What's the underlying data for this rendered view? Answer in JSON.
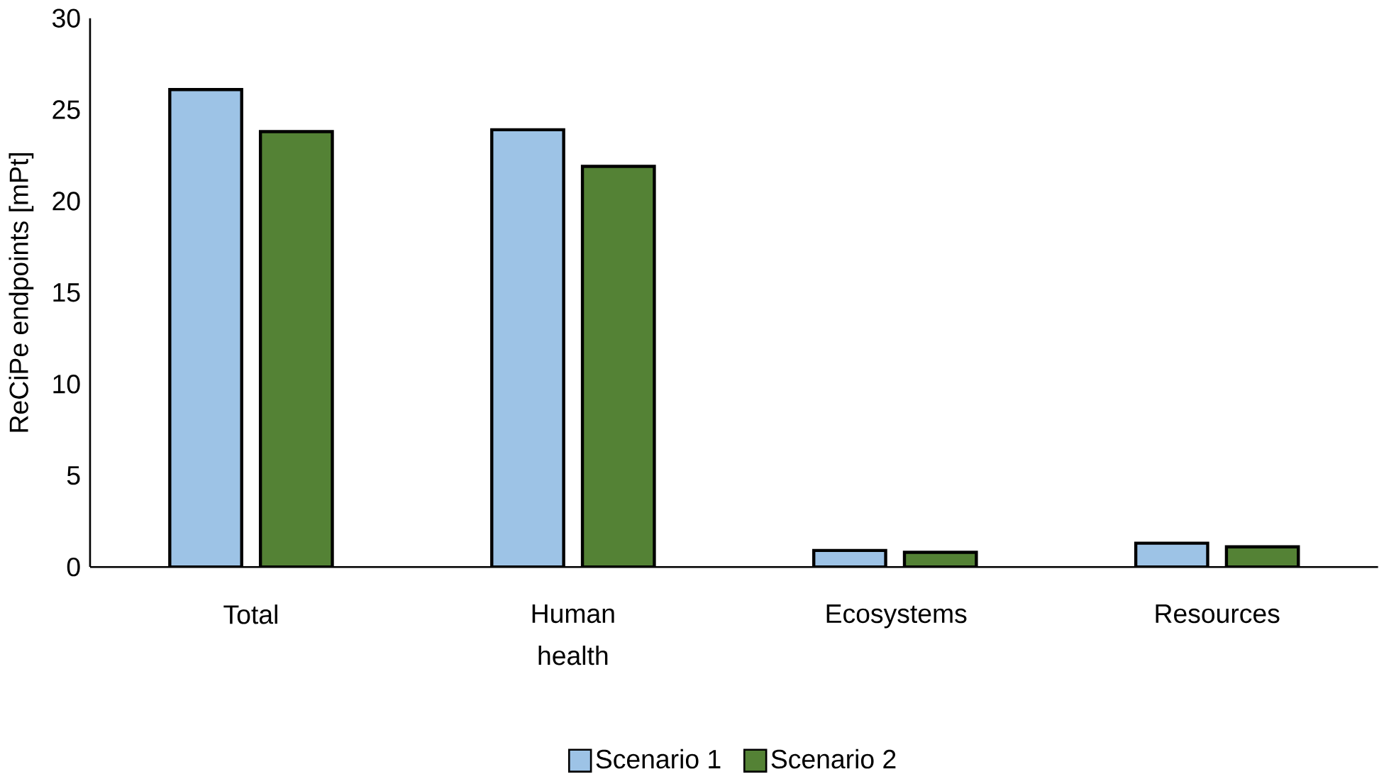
{
  "chart_data": {
    "type": "bar",
    "ylabel": "ReCiPe endpoints [mPt]",
    "categories": [
      "Total",
      "Human health",
      "Ecosystems",
      "Resources"
    ],
    "series": [
      {
        "name": "Scenario 1",
        "color": "#9dc3e6",
        "values": [
          26.1,
          23.9,
          0.9,
          1.3
        ]
      },
      {
        "name": "Scenario 2",
        "color": "#548235",
        "values": [
          23.8,
          21.9,
          0.8,
          1.1
        ]
      }
    ],
    "ylim": [
      0,
      30
    ],
    "yticks": [
      0,
      5,
      10,
      15,
      20,
      25,
      30
    ],
    "grid": false,
    "legend": "bottom"
  }
}
